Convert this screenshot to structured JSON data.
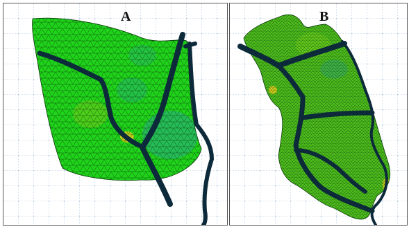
{
  "panels": [
    {
      "label": "A"
    },
    {
      "label": "B"
    }
  ],
  "colors": {
    "background": "#ffffff",
    "grid": "#9ab8d8",
    "mesh_fill": "#1fd21a",
    "mesh_fill_dense": "#4fbf1c",
    "mesh_lines": "#0b3a0b",
    "channel": "#0c2a3a",
    "hotspot_yellow": "#e6d21e",
    "hotspot_teal": "#2aa88a"
  }
}
